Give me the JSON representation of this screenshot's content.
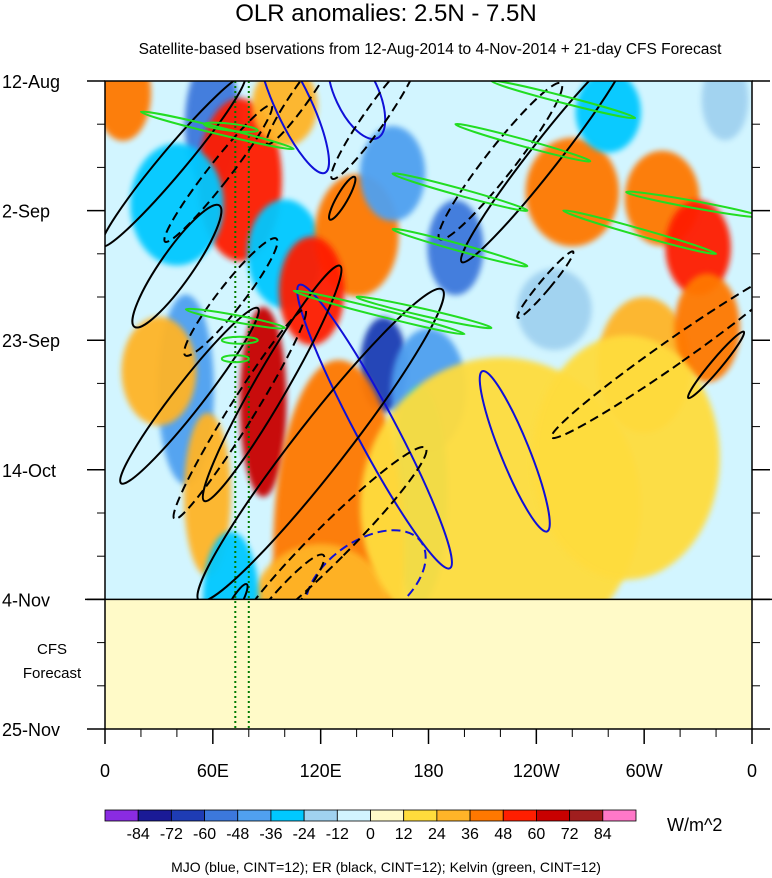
{
  "title": "OLR anomalies: 2.5N - 7.5N",
  "subtitle": "Satellite-based bservations from 12-Aug-2014 to 4-Nov-2014 + 21-day CFS Forecast",
  "footnote": "MJO (blue, CINT=12); ER (black, CINT=12); Kelvin (green, CINT=12)",
  "chart_data": {
    "type": "heatmap",
    "x_axis": {
      "range_deg_east": [
        0,
        360
      ],
      "ticks": [
        {
          "lon": 0,
          "label": "0"
        },
        {
          "lon": 60,
          "label": "60E"
        },
        {
          "lon": 120,
          "label": "120E"
        },
        {
          "lon": 180,
          "label": "180"
        },
        {
          "lon": 240,
          "label": "120W"
        },
        {
          "lon": 300,
          "label": "60W"
        },
        {
          "lon": 360,
          "label": "0"
        }
      ]
    },
    "y_axis": {
      "range": [
        "12-Aug-2014",
        "25-Nov-2014"
      ],
      "ticks": [
        {
          "date": "2014-08-12",
          "label": "12-Aug"
        },
        {
          "date": "2014-09-02",
          "label": "2-Sep"
        },
        {
          "date": "2014-09-23",
          "label": "23-Sep"
        },
        {
          "date": "2014-10-14",
          "label": "14-Oct"
        },
        {
          "date": "2014-11-04",
          "label": "4-Nov"
        },
        {
          "date": "2014-11-25",
          "label": "25-Nov"
        }
      ],
      "inverted": true
    },
    "forecast": {
      "start": "2014-11-04",
      "end": "2014-11-25",
      "label_line1": "CFS",
      "label_line2": "Forecast"
    },
    "reference_lines": [
      {
        "lon": 72.5,
        "color": "#007a00",
        "style": "dotted"
      },
      {
        "lon": 80,
        "color": "#007a00",
        "style": "dotted"
      }
    ],
    "colorbar": {
      "units": "W/m^2",
      "labels": [
        "-84",
        "-72",
        "-60",
        "-48",
        "-36",
        "-24",
        "-12",
        "0",
        "12",
        "24",
        "36",
        "48",
        "60",
        "72",
        "84"
      ],
      "colors": [
        "#8a2be2",
        "#1a1a96",
        "#1e3cb4",
        "#3c78dc",
        "#50a0f0",
        "#00c8ff",
        "#a0d2f0",
        "#d2f5ff",
        "#fffac8",
        "#ffdc3c",
        "#ffb428",
        "#ff7800",
        "#ff1e00",
        "#c80000",
        "#a01e1e",
        "#ff78c8"
      ]
    },
    "contour_legend": [
      {
        "name": "MJO",
        "color": "blue",
        "cint": 12
      },
      {
        "name": "ER",
        "color": "black",
        "cint": 12
      },
      {
        "name": "Kelvin",
        "color": "green",
        "cint": 12
      }
    ],
    "anomaly_regions": [
      {
        "lon": 60,
        "date": "2014-08-19",
        "value": -60,
        "rx": 12,
        "ry": 10
      },
      {
        "lon": 75,
        "date": "2014-08-28",
        "value": 48,
        "rx": 18,
        "ry": 12
      },
      {
        "lon": 40,
        "date": "2014-09-01",
        "value": -36,
        "rx": 20,
        "ry": 9
      },
      {
        "lon": 100,
        "date": "2014-09-09",
        "value": -36,
        "rx": 16,
        "ry": 8
      },
      {
        "lon": 140,
        "date": "2014-09-06",
        "value": 36,
        "rx": 18,
        "ry": 9
      },
      {
        "lon": 160,
        "date": "2014-08-27",
        "value": -48,
        "rx": 14,
        "ry": 7
      },
      {
        "lon": 195,
        "date": "2014-09-08",
        "value": -60,
        "rx": 12,
        "ry": 7
      },
      {
        "lon": 115,
        "date": "2014-09-15",
        "value": 48,
        "rx": 14,
        "ry": 8
      },
      {
        "lon": 260,
        "date": "2014-08-30",
        "value": 36,
        "rx": 20,
        "ry": 8
      },
      {
        "lon": 310,
        "date": "2014-08-31",
        "value": 36,
        "rx": 16,
        "ry": 7
      },
      {
        "lon": 330,
        "date": "2014-09-08",
        "value": 48,
        "rx": 14,
        "ry": 7
      },
      {
        "lon": 45,
        "date": "2014-10-01",
        "value": -48,
        "rx": 12,
        "ry": 14
      },
      {
        "lon": 88,
        "date": "2014-10-03",
        "value": 60,
        "rx": 10,
        "ry": 14
      },
      {
        "lon": 155,
        "date": "2014-09-27",
        "value": -72,
        "rx": 10,
        "ry": 7
      },
      {
        "lon": 180,
        "date": "2014-10-01",
        "value": -48,
        "rx": 16,
        "ry": 9
      },
      {
        "lon": 175,
        "date": "2014-10-18",
        "value": -36,
        "rx": 12,
        "ry": 16
      },
      {
        "lon": 30,
        "date": "2014-09-28",
        "value": 24,
        "rx": 16,
        "ry": 8
      },
      {
        "lon": 57,
        "date": "2014-10-18",
        "value": 24,
        "rx": 10,
        "ry": 12
      },
      {
        "lon": 130,
        "date": "2014-10-27",
        "value": 36,
        "rx": 28,
        "ry": 28
      },
      {
        "lon": 120,
        "date": "2014-11-06",
        "value": 24,
        "rx": 30,
        "ry": 10
      },
      {
        "lon": 70,
        "date": "2014-11-04",
        "value": -36,
        "rx": 12,
        "ry": 10
      },
      {
        "lon": 300,
        "date": "2014-09-27",
        "value": 24,
        "rx": 20,
        "ry": 10
      },
      {
        "lon": 335,
        "date": "2014-09-21",
        "value": 36,
        "rx": 14,
        "ry": 8
      },
      {
        "lon": 220,
        "date": "2014-10-20",
        "value": 12,
        "rx": 60,
        "ry": 22
      },
      {
        "lon": 290,
        "date": "2014-10-12",
        "value": 12,
        "rx": 40,
        "ry": 18
      },
      {
        "lon": 250,
        "date": "2014-09-18",
        "value": -24,
        "rx": 16,
        "ry": 6
      },
      {
        "lon": 280,
        "date": "2014-08-17",
        "value": -36,
        "rx": 14,
        "ry": 6
      },
      {
        "lon": 10,
        "date": "2014-08-14",
        "value": 36,
        "rx": 12,
        "ry": 7
      },
      {
        "lon": 100,
        "date": "2014-08-16",
        "value": 24,
        "rx": 14,
        "ry": 6
      },
      {
        "lon": 345,
        "date": "2014-08-15",
        "value": -24,
        "rx": 10,
        "ry": 6
      }
    ],
    "contours": {
      "mjo": [
        {
          "kind": "ellipse",
          "solid": true,
          "lon": 150,
          "date": "2014-10-07",
          "rx": 11,
          "ry": 26,
          "angle": -28
        },
        {
          "kind": "ellipse",
          "solid": true,
          "lon": 228,
          "date": "2014-10-11",
          "rx": 8,
          "ry": 14,
          "angle": -22
        },
        {
          "kind": "ellipse",
          "solid": false,
          "lon": 145,
          "date": "2014-11-01",
          "rx": 22,
          "ry": 11,
          "angle": 55
        },
        {
          "kind": "ellipse",
          "solid": true,
          "lon": 105,
          "date": "2014-08-16",
          "rx": 10,
          "ry": 12,
          "angle": -25
        },
        {
          "kind": "ellipse",
          "solid": true,
          "lon": 140,
          "date": "2014-08-14",
          "rx": 12,
          "ry": 8,
          "angle": -25
        }
      ],
      "er": [
        {
          "kind": "ellipse",
          "solid": true,
          "lon": 38,
          "date": "2014-08-25",
          "rx": 7,
          "ry": 18,
          "angle": 40
        },
        {
          "kind": "ellipse",
          "solid": false,
          "lon": 63,
          "date": "2014-08-27",
          "rx": 6,
          "ry": 14,
          "angle": 38
        },
        {
          "kind": "ellipse",
          "solid": true,
          "lon": 40,
          "date": "2014-09-11",
          "rx": 9,
          "ry": 12,
          "angle": 35
        },
        {
          "kind": "ellipse",
          "solid": false,
          "lon": 70,
          "date": "2014-09-16",
          "rx": 7,
          "ry": 12,
          "angle": 38
        },
        {
          "kind": "ellipse",
          "solid": true,
          "lon": 47,
          "date": "2014-10-02",
          "rx": 8,
          "ry": 18,
          "angle": 38
        },
        {
          "kind": "ellipse",
          "solid": false,
          "lon": 75,
          "date": "2014-10-05",
          "rx": 7,
          "ry": 20,
          "angle": 32
        },
        {
          "kind": "ellipse",
          "solid": true,
          "lon": 93,
          "date": "2014-09-30",
          "rx": 9,
          "ry": 22,
          "angle": 30
        },
        {
          "kind": "ellipse",
          "solid": true,
          "lon": 120,
          "date": "2014-10-10",
          "rx": 14,
          "ry": 32,
          "angle": 38
        },
        {
          "kind": "ellipse",
          "solid": false,
          "lon": 125,
          "date": "2014-10-26",
          "rx": 10,
          "ry": 22,
          "angle": 45
        },
        {
          "kind": "ellipse",
          "solid": false,
          "lon": 95,
          "date": "2014-11-06",
          "rx": 7,
          "ry": 12,
          "angle": 40
        },
        {
          "kind": "ellipse",
          "solid": true,
          "lon": 72,
          "date": "2014-11-05",
          "rx": 3,
          "ry": 4,
          "angle": 30
        },
        {
          "kind": "ellipse",
          "solid": false,
          "lon": 150,
          "date": "2014-08-18",
          "rx": 6,
          "ry": 12,
          "angle": 35
        },
        {
          "kind": "ellipse",
          "solid": false,
          "lon": 220,
          "date": "2014-08-25",
          "rx": 8,
          "ry": 16,
          "angle": 38
        },
        {
          "kind": "ellipse",
          "solid": true,
          "lon": 245,
          "date": "2014-08-24",
          "rx": 8,
          "ry": 22,
          "angle": 38
        },
        {
          "kind": "ellipse",
          "solid": true,
          "lon": 132,
          "date": "2014-08-31",
          "rx": 3,
          "ry": 4,
          "angle": 30
        },
        {
          "kind": "ellipse",
          "solid": false,
          "lon": 110,
          "date": "2014-08-14",
          "rx": 5,
          "ry": 10,
          "angle": 35
        },
        {
          "kind": "ellipse",
          "solid": false,
          "lon": 316,
          "date": "2014-09-25",
          "rx": 7,
          "ry": 24,
          "angle": 55
        },
        {
          "kind": "ellipse",
          "solid": true,
          "lon": 340,
          "date": "2014-09-27",
          "rx": 3,
          "ry": 7,
          "angle": 40
        },
        {
          "kind": "ellipse",
          "solid": false,
          "lon": 245,
          "date": "2014-09-14",
          "rx": 3,
          "ry": 7,
          "angle": 40
        }
      ],
      "kelvin": [
        {
          "kind": "line",
          "lon1": 20,
          "date1": "2014-08-17",
          "lon2": 105,
          "date2": "2014-08-23"
        },
        {
          "kind": "line",
          "lon1": 55,
          "date1": "2014-08-19",
          "lon2": 85,
          "date2": "2014-08-20"
        },
        {
          "kind": "line",
          "lon1": 160,
          "date1": "2014-08-27",
          "lon2": 235,
          "date2": "2014-09-02"
        },
        {
          "kind": "line",
          "lon1": 195,
          "date1": "2014-08-19",
          "lon2": 270,
          "date2": "2014-08-25"
        },
        {
          "kind": "line",
          "lon1": 215,
          "date1": "2014-08-12",
          "lon2": 295,
          "date2": "2014-08-18"
        },
        {
          "kind": "line",
          "lon1": 290,
          "date1": "2014-08-30",
          "lon2": 365,
          "date2": "2014-09-03"
        },
        {
          "kind": "line",
          "lon1": 255,
          "date1": "2014-09-02",
          "lon2": 340,
          "date2": "2014-09-09"
        },
        {
          "kind": "line",
          "lon1": 160,
          "date1": "2014-09-05",
          "lon2": 235,
          "date2": "2014-09-11"
        },
        {
          "kind": "line",
          "lon1": 105,
          "date1": "2014-09-15",
          "lon2": 200,
          "date2": "2014-09-22"
        },
        {
          "kind": "line",
          "lon1": 140,
          "date1": "2014-09-16",
          "lon2": 215,
          "date2": "2014-09-21"
        },
        {
          "kind": "line",
          "lon1": 45,
          "date1": "2014-09-18",
          "lon2": 100,
          "date2": "2014-09-21"
        },
        {
          "kind": "line",
          "lon1": 65,
          "date1": "2014-09-23",
          "lon2": 85,
          "date2": "2014-09-23"
        },
        {
          "kind": "line",
          "lon1": 65,
          "date1": "2014-09-26",
          "lon2": 80,
          "date2": "2014-09-26"
        }
      ]
    }
  }
}
